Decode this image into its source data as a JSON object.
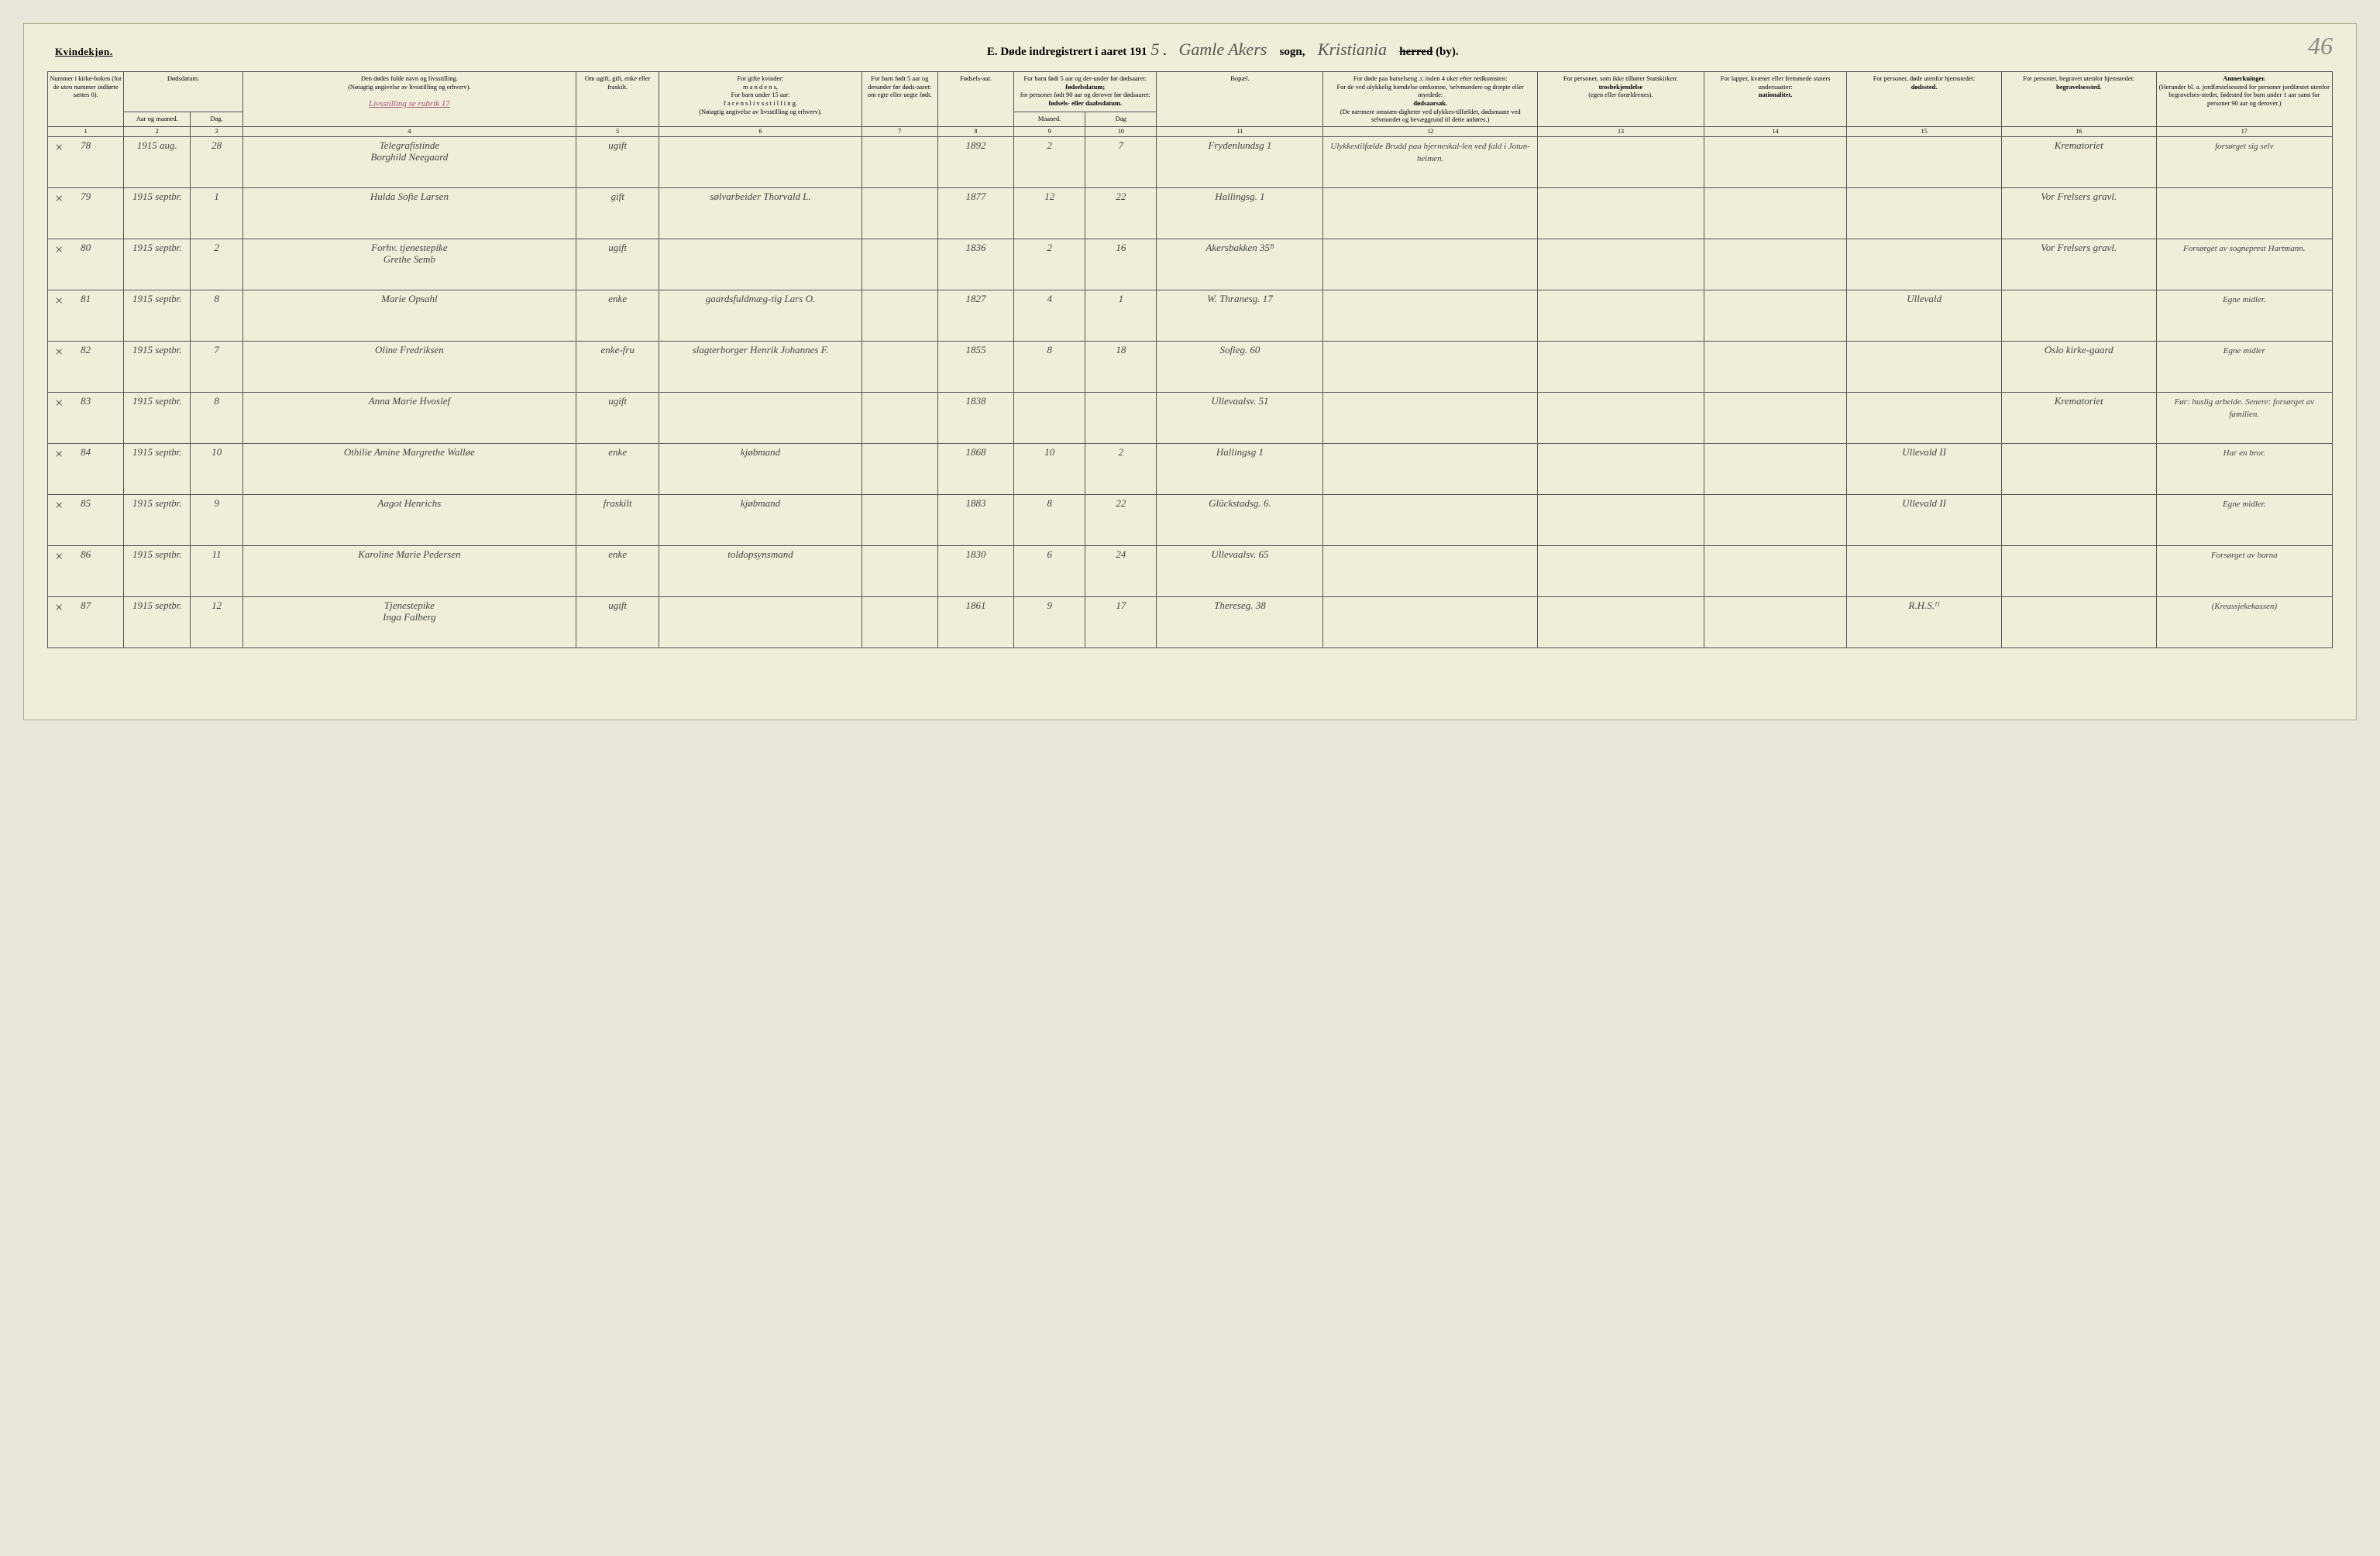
{
  "page_number_hw": "46",
  "header": {
    "kvindekjon": "Kvindekjøn.",
    "prefix": "E.  Døde indregistrert i aaret 191",
    "year_suffix": "5",
    "period": ".",
    "sogn_hw": "Gamle Akers",
    "sogn_label": "sogn,",
    "herred_hw": "Kristiania",
    "herred_strike": "herred",
    "by": "(by)."
  },
  "colhead": {
    "c1": "Nummer i kirke-boken (for de uten nummer indførte sættes 0).",
    "c2a": "Dødsdatum.",
    "c2_aar": "Aar og maaned.",
    "c2_dag": "Dag.",
    "c4_top": "Den dødes fulde navn og livsstilling.",
    "c4_sub": "(Nøiagtig angivelse av livsstilling og erhverv).",
    "c4_hw": "Livsstilling se rubrik 17",
    "c5": "Om ugift, gift, enke eller fraskilt.",
    "c6_top": "For gifte kvinder:",
    "c6_a": "m a n d e n s,",
    "c6_b": "For barn under 15 aar:",
    "c6_c": "f a r e n s  l i v s s t i l l i n g.",
    "c6_d": "(Nøiagtig angivelse av livsstilling og erhverv).",
    "c7": "For barn født 5 aar og derunder før døds-aaret: om egte eller uegte født.",
    "c8": "Fødsels-aar.",
    "c9_top": "For barn født 5 aar og der-under før dødsaaret:",
    "c9_a": "fødselsdatum;",
    "c9_b": "for personer født 90 aar og derover før dødsaaret:",
    "c9_c": "fødsels- eller daabsdatum.",
    "c9_m": "Maaned.",
    "c9_d": "Dag",
    "c11": "Bopæl.",
    "c12_top": "For døde paa barselseng ɔ: inden 4 uker efter nedkomsten:",
    "c12_a": "For de ved ulykkelig hændelse omkomne, 'selvmordere og dræpte eller myrdede:",
    "c12_b": "dødsaarsak.",
    "c12_c": "(De nærmere omstæn-digheter ved ulykkes-tilfældet, dødsmaate ved selvmordet og bevæggrund til dette anføres.)",
    "c13_top": "For personer, som ikke tilhører Statskirken:",
    "c13_a": "trosbekjendelse",
    "c13_b": "(egen eller forældrenes).",
    "c14_top": "For lapper, kvæner eller fremmede staters undersaatter:",
    "c14_a": "nationalitet.",
    "c15_top": "For personer, døde utenfor hjemstedet:",
    "c15_a": "dødssted.",
    "c16_top": "For personer, begravet utenfor hjemstedet:",
    "c16_a": "begravelsessted.",
    "c17_top": "Anmerkninger.",
    "c17_a": "(Herunder bl. a. jordfæstelsessted for personer jordfæstet utenfor begravelses-stedet, fødested for barn under 1 aar samt for personer 90 aar og derover.)"
  },
  "colnums": [
    "1",
    "2",
    "3",
    "4",
    "5",
    "6",
    "7",
    "8",
    "9",
    "10",
    "11",
    "12",
    "13",
    "14",
    "15",
    "16",
    "17"
  ],
  "rows": [
    {
      "x": "×",
      "num": "78",
      "aar": "1915 aug.",
      "dag": "28",
      "navn": "Telegrafistinde\nBorghild Neegaard",
      "status": "ugift",
      "col6": "",
      "col7": "",
      "faar": "1892",
      "m": "2",
      "d": "7",
      "bopael": "Frydenlundsg 1",
      "col12": "Ulykkestilfælde Brudd paa hjerneskal-len ved fald i Jotun-heimen.",
      "c13": "",
      "c14": "",
      "c15": "",
      "c16": "Krematoriet",
      "c17": "forsørget sig selv"
    },
    {
      "x": "×",
      "num": "79",
      "aar": "1915 septbr.",
      "dag": "1",
      "navn": "Hulda Sofie Larsen",
      "status": "gift",
      "col6": "sølvarbeider Thorvald L.",
      "col7": "",
      "faar": "1877",
      "m": "12",
      "d": "22",
      "bopael": "Hallingsg. 1",
      "col12": "",
      "c13": "",
      "c14": "",
      "c15": "",
      "c16": "Vor Frelsers gravl.",
      "c17": ""
    },
    {
      "x": "×",
      "num": "80",
      "aar": "1915 septbr.",
      "dag": "2",
      "navn": "Forhv. tjenestepike\nGrethe Semb",
      "status": "ugift",
      "col6": "",
      "col7": "",
      "faar": "1836",
      "m": "2",
      "d": "16",
      "bopael": "Akersbakken 35ᴮ",
      "col12": "",
      "c13": "",
      "c14": "",
      "c15": "",
      "c16": "Vor Frelsers gravl.",
      "c17": "Forsørget av sogneprest Hartmann."
    },
    {
      "x": "×",
      "num": "81",
      "aar": "1915 septbr.",
      "dag": "8",
      "navn": "Marie Opsahl",
      "status": "enke",
      "col6": "gaardsfuldmæg-tig Lars O.",
      "col7": "",
      "faar": "1827",
      "m": "4",
      "d": "1",
      "bopael": "W. Thranesg. 17",
      "col12": "",
      "c13": "",
      "c14": "",
      "c15": "Ullevald",
      "c16": "",
      "c17": "Egne midler."
    },
    {
      "x": "×",
      "num": "82",
      "aar": "1915 septbr.",
      "dag": "7",
      "navn": "Oline Fredriksen",
      "status": "enke-fru",
      "col6": "slagterborger Henrik Johannes F.",
      "col7": "",
      "faar": "1855",
      "m": "8",
      "d": "18",
      "bopael": "Sofieg. 60",
      "col12": "",
      "c13": "",
      "c14": "",
      "c15": "",
      "c16": "Oslo kirke-gaard",
      "c17": "Egne midler"
    },
    {
      "x": "×",
      "num": "83",
      "aar": "1915 septbr.",
      "dag": "8",
      "navn": "Anna Marie Hvoslef",
      "status": "ugift",
      "col6": "",
      "col7": "",
      "faar": "1838",
      "m": "",
      "d": "",
      "bopael": "Ullevaalsv. 51",
      "col12": "",
      "c13": "",
      "c14": "",
      "c15": "",
      "c16": "Krematoriet",
      "c17": "Før: huslig arbeide. Senere: forsørget av familien."
    },
    {
      "x": "×",
      "num": "84",
      "aar": "1915 septbr.",
      "dag": "10",
      "navn": "Othilie Amine Margrethe Walløe",
      "status": "enke",
      "col6": "kjøbmand",
      "col7": "",
      "faar": "1868",
      "m": "10",
      "d": "2",
      "bopael": "Hallingsg 1",
      "col12": "",
      "c13": "",
      "c14": "",
      "c15": "Ullevald II",
      "c16": "",
      "c17": "Har en bror."
    },
    {
      "x": "×",
      "num": "85",
      "aar": "1915 septbr.",
      "dag": "9",
      "navn": "Aagot Henrichs",
      "status": "fraskilt",
      "col6": "kjøbmand",
      "col7": "",
      "faar": "1883",
      "m": "8",
      "d": "22",
      "bopael": "Glückstadsg. 6.",
      "col12": "",
      "c13": "",
      "c14": "",
      "c15": "Ullevald II",
      "c16": "",
      "c17": "Egne midler."
    },
    {
      "x": "×",
      "num": "86",
      "aar": "1915 septbr.",
      "dag": "11",
      "navn": "Karoline Marie Pedersen",
      "status": "enke",
      "col6": "toldopsynsmand",
      "col7": "",
      "faar": "1830",
      "m": "6",
      "d": "24",
      "bopael": "Ullevaalsv. 65",
      "col12": "",
      "c13": "",
      "c14": "",
      "c15": "",
      "c16": "",
      "c17": "Forsørget av barna"
    },
    {
      "x": "×",
      "num": "87",
      "aar": "1915 septbr.",
      "dag": "12",
      "navn": "Tjenestepike\nInga Falberg",
      "status": "ugift",
      "col6": "",
      "col7": "",
      "faar": "1861",
      "m": "9",
      "d": "17",
      "bopael": "Thereseg. 38",
      "col12": "",
      "c13": "",
      "c14": "",
      "c15": "R.H.S.ᴵᴵ",
      "c16": "",
      "c17": "(Kreassjekekassen)"
    }
  ]
}
